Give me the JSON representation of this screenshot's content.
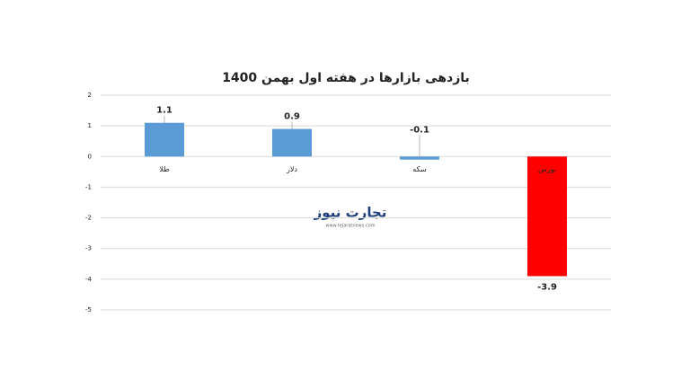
{
  "chart_data": {
    "type": "bar",
    "title": "بازدهی بازارها در هفته اول بهمن 1400",
    "categories": [
      "طلا",
      "دلار",
      "سکه",
      "بورس"
    ],
    "values": [
      1.1,
      0.9,
      -0.1,
      -3.9
    ],
    "colors": [
      "#5b9bd5",
      "#5b9bd5",
      "#5b9bd5",
      "#ff0000"
    ],
    "ylim": [
      -5,
      2
    ],
    "yticks": [
      -5,
      -4,
      -3,
      -2,
      -1,
      0,
      1,
      2
    ],
    "grid": true,
    "watermark": {
      "name": "تجارت نیوز",
      "url": "www.tejaratnews.com"
    }
  }
}
